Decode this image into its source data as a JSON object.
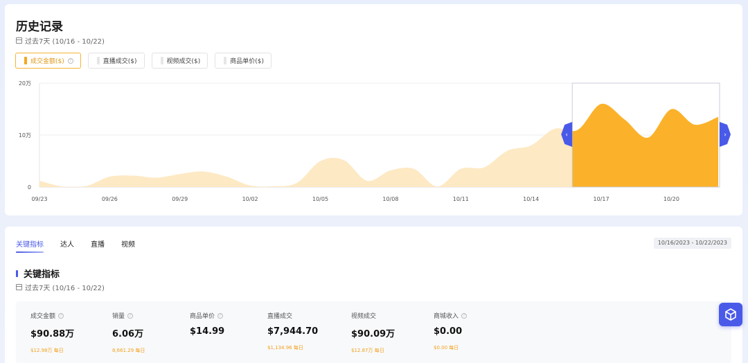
{
  "history": {
    "title": "历史记录",
    "date_range": "过去7天 (10/16 - 10/22)",
    "filters": [
      {
        "label": "成交金额($)",
        "active": true,
        "has_help": true
      },
      {
        "label": "直播成交($)",
        "active": false,
        "has_help": false
      },
      {
        "label": "视频成交($)",
        "active": false,
        "has_help": false
      },
      {
        "label": "商品单价($)",
        "active": false,
        "has_help": false
      }
    ]
  },
  "chart_data": {
    "type": "area",
    "y_ticks": [
      "20万",
      "10万",
      "0"
    ],
    "ylim": [
      0,
      200000
    ],
    "x_tick_labels": [
      "09/23",
      "09/26",
      "09/29",
      "10/02",
      "10/05",
      "10/08",
      "10/11",
      "10/14",
      "10/17",
      "10/20"
    ],
    "x": [
      "09/23",
      "09/24",
      "09/25",
      "09/26",
      "09/27",
      "09/28",
      "09/29",
      "09/30",
      "10/01",
      "10/02",
      "10/03",
      "10/04",
      "10/05",
      "10/06",
      "10/07",
      "10/08",
      "10/09",
      "10/10",
      "10/11",
      "10/12",
      "10/13",
      "10/14",
      "10/15",
      "10/16",
      "10/17",
      "10/18",
      "10/19",
      "10/20",
      "10/21",
      "10/22"
    ],
    "values": [
      12000,
      1000,
      2000,
      20000,
      22000,
      18000,
      25000,
      30000,
      20000,
      3000,
      1500,
      8000,
      50000,
      52000,
      12000,
      32000,
      35000,
      1000,
      35000,
      38000,
      70000,
      80000,
      112000,
      110000,
      160000,
      130000,
      95000,
      150000,
      120000,
      135000
    ],
    "selected_range": [
      "10/16",
      "10/22"
    ],
    "colors": {
      "area": "#fde9c4",
      "selected": "#fbb22a",
      "handle": "#4a5ae8"
    }
  },
  "metrics_section": {
    "tabs": [
      "关键指标",
      "达人",
      "直播",
      "视频"
    ],
    "active_tab": 0,
    "date_chip": "10/16/2023 - 10/22/2023",
    "title": "关键指标",
    "date_range": "过去7天 (10/16 - 10/22)",
    "metrics": [
      {
        "label": "成交金额",
        "value": "$90.88万",
        "sub": "$12.98万 每日",
        "has_help": true
      },
      {
        "label": "销量",
        "value": "6.06万",
        "sub": "8,661.29 每日",
        "has_help": true
      },
      {
        "label": "商品单价",
        "value": "$14.99",
        "sub": "",
        "has_help": true
      },
      {
        "label": "直播成交",
        "value": "$7,944.70",
        "sub": "$1,134.96 每日",
        "has_help": false
      },
      {
        "label": "视频成交",
        "value": "$90.09万",
        "sub": "$12.87万 每日",
        "has_help": false
      },
      {
        "label": "商城收入",
        "value": "$0.00",
        "sub": "$0.00 每日",
        "has_help": true
      }
    ]
  },
  "icons": {
    "help": "help-circle-icon",
    "calendar": "calendar-icon",
    "float": "cube-icon"
  },
  "help_glyph": "?",
  "handle_left_glyph": "‹",
  "handle_right_glyph": "›"
}
